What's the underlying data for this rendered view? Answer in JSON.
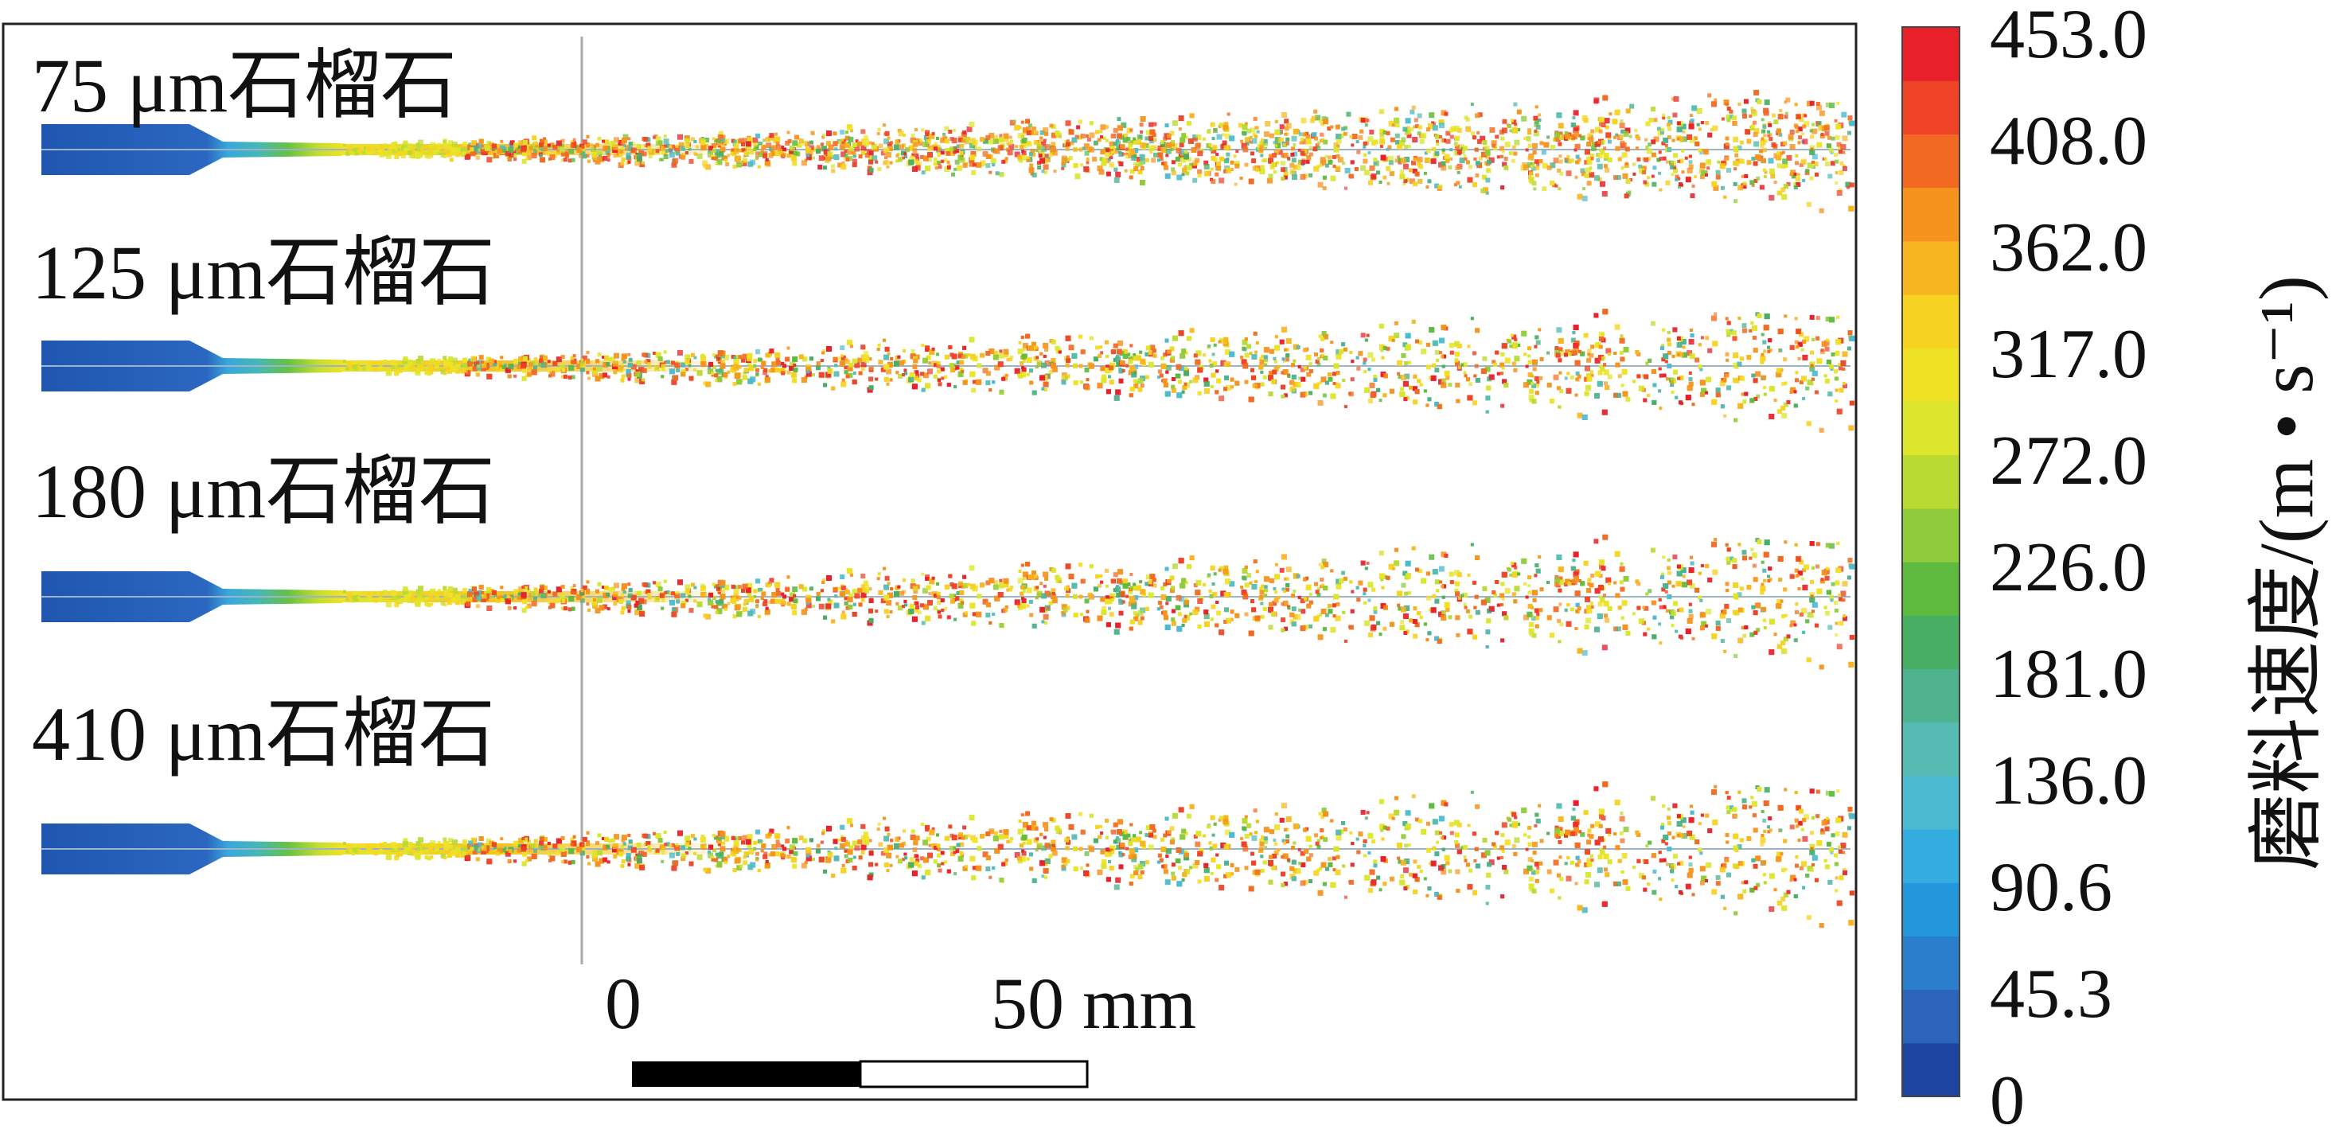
{
  "jets": [
    {
      "label": "75 μm石榴石"
    },
    {
      "label": "125 μm石榴石"
    },
    {
      "label": "180 μm石榴石"
    },
    {
      "label": "410 μm石榴石"
    }
  ],
  "scale_bar": {
    "start_label": "0",
    "end_label": "50 mm"
  },
  "colorbar": {
    "title": "磨料速度/(m • s⁻¹)",
    "tick_labels": [
      "453.0",
      "408.0",
      "362.0",
      "317.0",
      "272.0",
      "226.0",
      "181.0",
      "136.0",
      "90.6",
      "45.3",
      "0"
    ],
    "colors": [
      "#e8202a",
      "#ee4326",
      "#f26a22",
      "#f5931e",
      "#f7b51f",
      "#f6d321",
      "#efe224",
      "#dbe62c",
      "#b9da33",
      "#8fcb3a",
      "#5dba3f",
      "#48ae64",
      "#4fb38f",
      "#55bbb2",
      "#4cbad0",
      "#33ade0",
      "#2497dc",
      "#2a7ecb",
      "#2b64b8",
      "#1c44a0"
    ]
  }
}
